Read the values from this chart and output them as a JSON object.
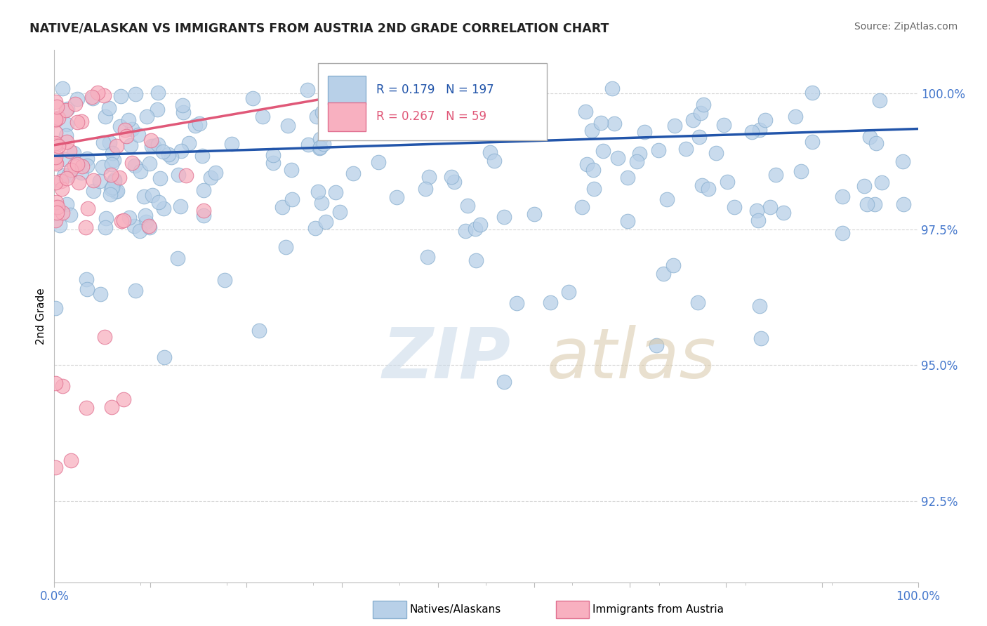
{
  "title": "NATIVE/ALASKAN VS IMMIGRANTS FROM AUSTRIA 2ND GRADE CORRELATION CHART",
  "source_text": "Source: ZipAtlas.com",
  "ylabel": "2nd Grade",
  "xlim": [
    0.0,
    1.0
  ],
  "ylim": [
    0.91,
    1.008
  ],
  "yticks": [
    0.925,
    0.95,
    0.975,
    1.0
  ],
  "ytick_labels": [
    "92.5%",
    "95.0%",
    "97.5%",
    "100.0%"
  ],
  "xtick_labels": [
    "0.0%",
    "",
    "",
    "",
    "",
    "",
    "",
    "",
    "",
    "100.0%"
  ],
  "blue_R": 0.179,
  "blue_N": 197,
  "pink_R": 0.267,
  "pink_N": 59,
  "blue_color": "#b8d0e8",
  "blue_edge": "#8ab0d0",
  "pink_color": "#f8b0c0",
  "pink_edge": "#e07090",
  "blue_line_color": "#2255aa",
  "pink_line_color": "#e05878",
  "legend_blue_label": "Natives/Alaskans",
  "legend_pink_label": "Immigrants from Austria",
  "background_color": "#ffffff",
  "blue_trend_x0": 0.0,
  "blue_trend_x1": 1.0,
  "blue_trend_y0": 0.9885,
  "blue_trend_y1": 0.9935,
  "pink_trend_x0": 0.0,
  "pink_trend_x1": 0.42,
  "pink_trend_y0": 0.9905,
  "pink_trend_y1": 1.002
}
